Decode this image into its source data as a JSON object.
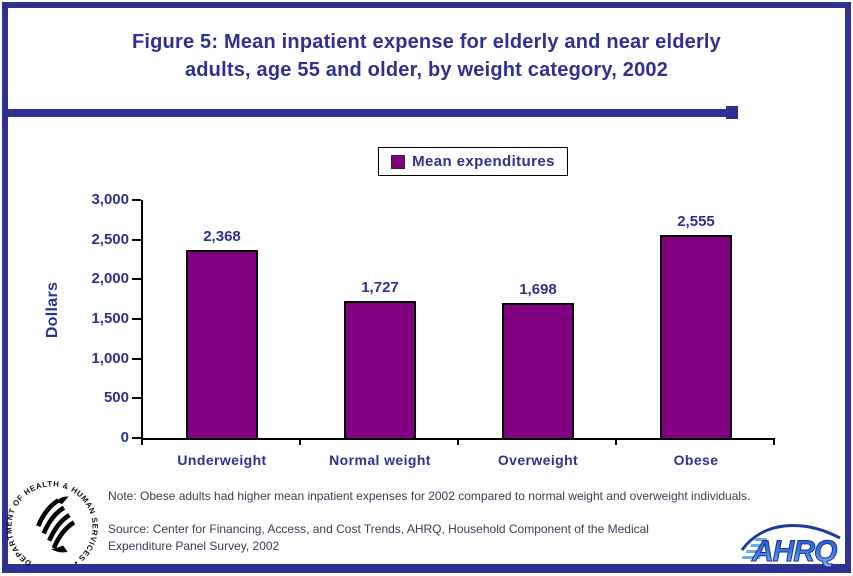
{
  "page": {
    "title_line1": "Figure 5: Mean inpatient expense for elderly and near elderly",
    "title_line2": "adults, age 55 and older, by weight category, 2002",
    "note": "Note: Obese adults had higher mean inpatient expenses for 2002 compared to normal weight and overweight individuals.",
    "source": "Source: Center for Financing, Access, and Cost Trends, AHRQ, Household Component of the Medical Expenditure Panel Survey, 2002"
  },
  "legend": {
    "label": "Mean expenditures",
    "swatch_color": "#800080"
  },
  "chart_data": {
    "type": "bar",
    "title": "Figure 5: Mean inpatient expense for elderly and near elderly adults, age 55 and older, by weight category, 2002",
    "categories": [
      "Underweight",
      "Normal weight",
      "Overweight",
      "Obese"
    ],
    "series": [
      {
        "name": "Mean expenditures",
        "values": [
          2368,
          1727,
          1698,
          2555
        ]
      }
    ],
    "value_labels": [
      "2,368",
      "1,727",
      "1,698",
      "2,555"
    ],
    "xlabel": "",
    "ylabel": "Dollars",
    "ylim": [
      0,
      3000
    ],
    "ytick_step": 500,
    "ytick_labels": [
      "0",
      "500",
      "1,000",
      "1,500",
      "2,000",
      "2,500",
      "3,000"
    ],
    "grid": false,
    "legend_position": "top-center",
    "bar_color": "#800080"
  },
  "logos": {
    "hhs_circle_text": "DEPARTMENT OF HEALTH & HUMAN SERVICES • USA",
    "ahrq_text": "AHRQ"
  },
  "colors": {
    "navy": "#2E3192",
    "bar_purple": "#800080",
    "body_text": "#3C3C52"
  }
}
